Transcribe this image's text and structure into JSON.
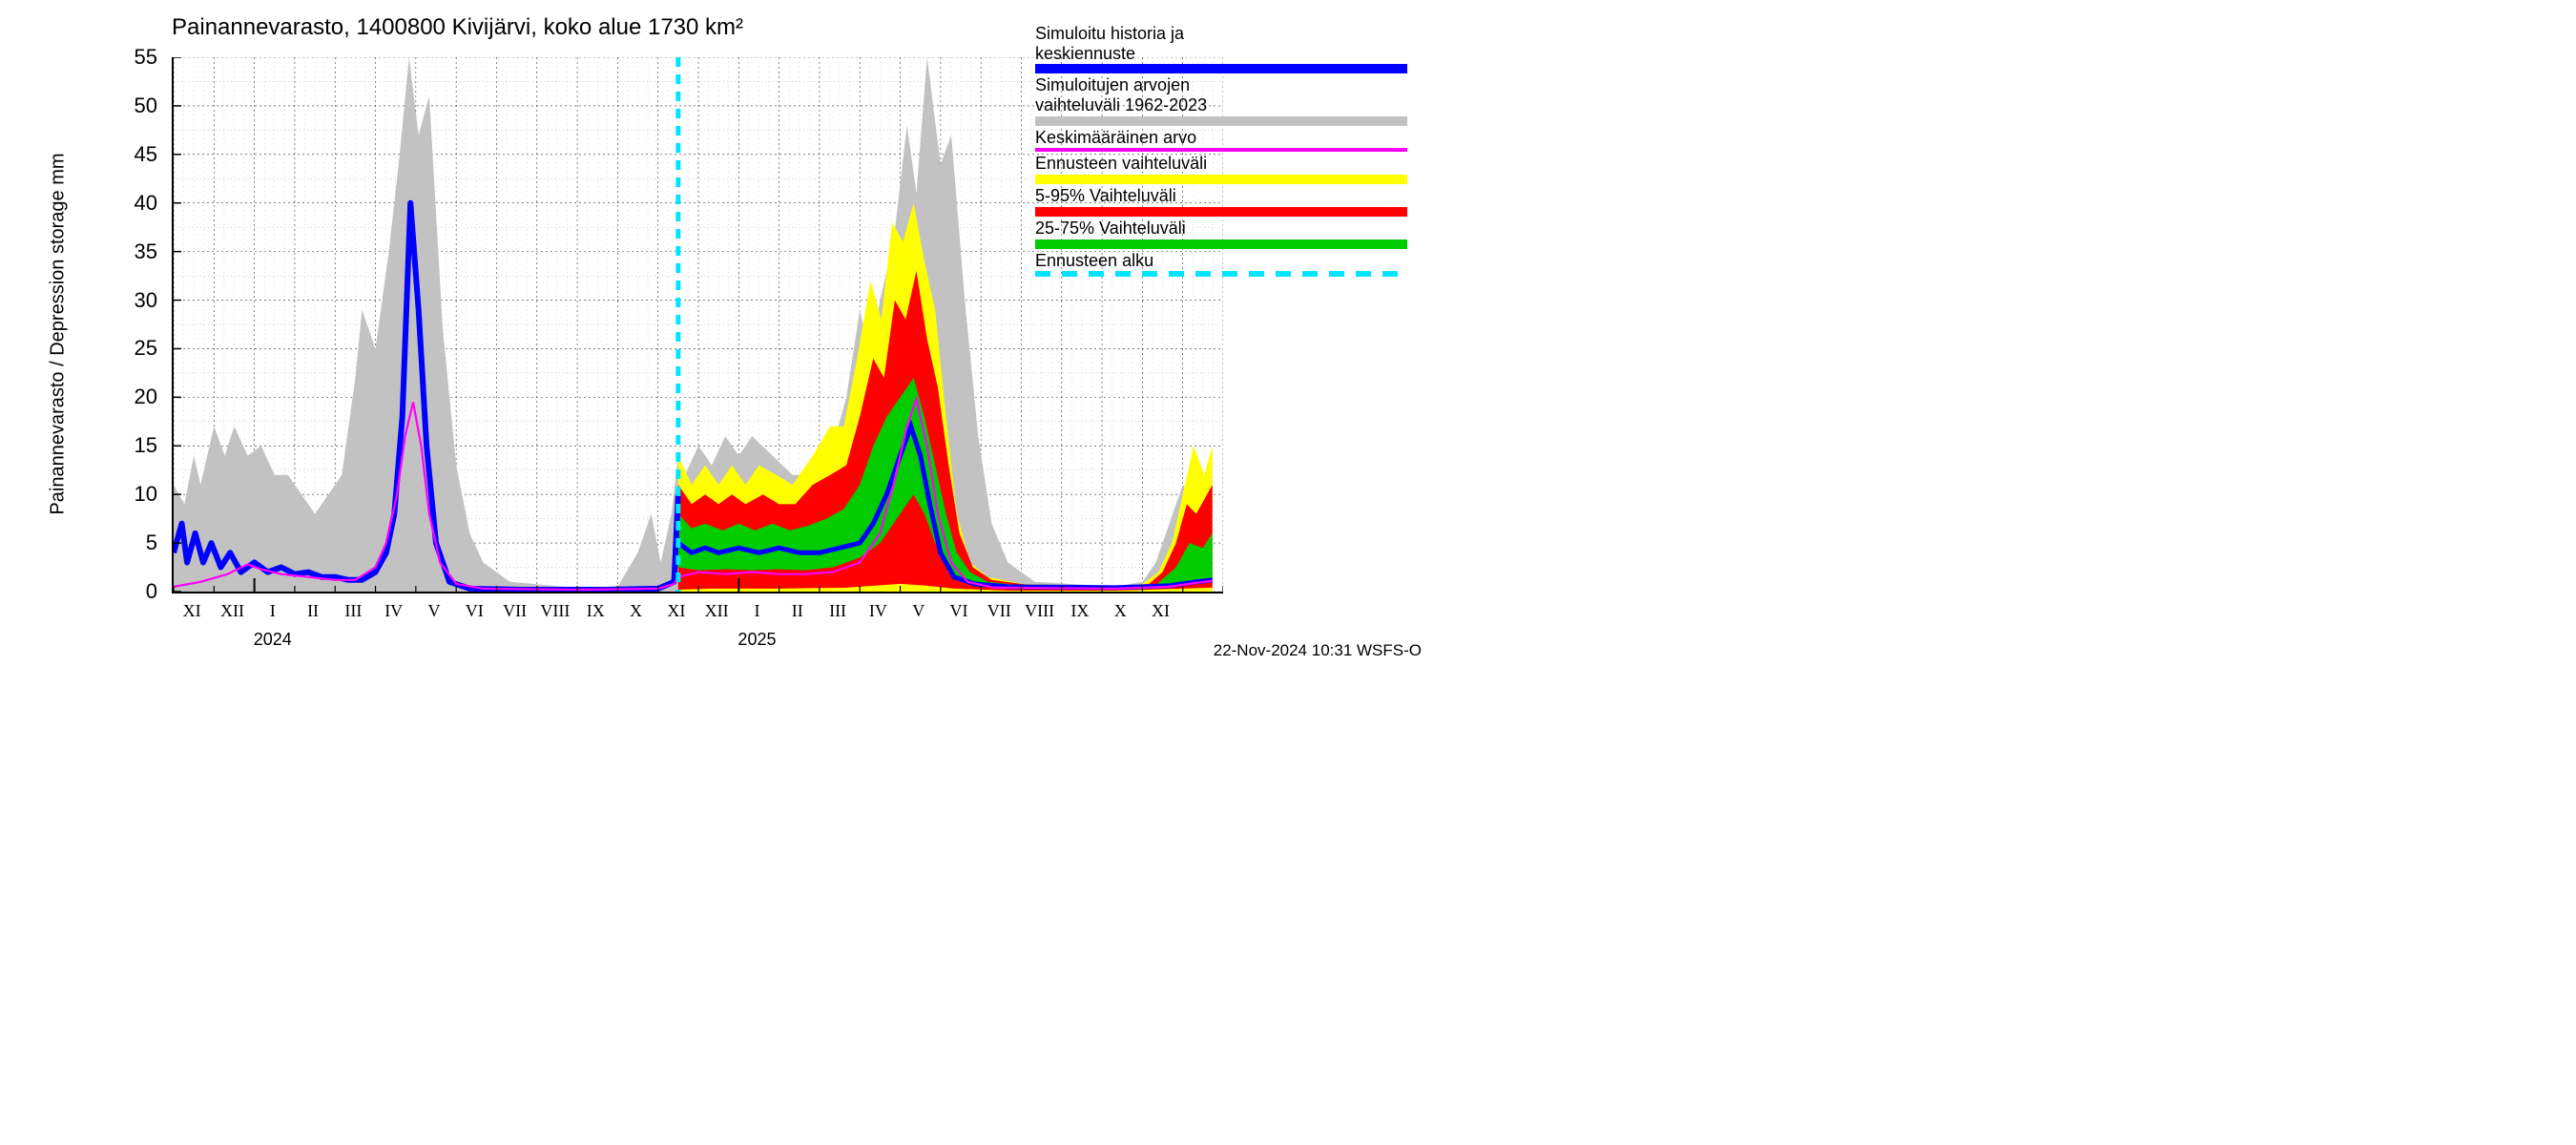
{
  "title": "Painannevarasto, 1400800 Kivijärvi, koko alue 1730 km²",
  "ylabel": "Painannevarasto / Depression storage    mm",
  "footer": "22-Nov-2024 10:31 WSFS-O",
  "axes": {
    "ylim": [
      0,
      55
    ],
    "ytick_step": 5,
    "yticks": [
      0,
      5,
      10,
      15,
      20,
      25,
      30,
      35,
      40,
      45,
      50,
      55
    ],
    "xlim": [
      0,
      390
    ],
    "xtick_positions": [
      10,
      40,
      73,
      103,
      133,
      163,
      195,
      225,
      255,
      285,
      315,
      345,
      375
    ],
    "xtick_labels_row1": [
      "XI",
      "XII",
      "I",
      "II",
      "III",
      "IV",
      "V",
      "VI",
      "VII",
      "VIII",
      "IX",
      "X",
      "XI"
    ],
    "xtick_positions_row2": [
      400,
      430,
      460,
      490,
      522,
      552,
      582,
      612,
      642,
      672,
      702,
      732,
      762
    ],
    "year_marks": [
      {
        "x": 73,
        "label": "2024"
      },
      {
        "x": 460,
        "label": "2025"
      }
    ]
  },
  "colors": {
    "background": "#ffffff",
    "grid_major": "#333333",
    "grid_minor": "#aaaaaa",
    "axis": "#000000",
    "grey_band": "#c2c2c2",
    "blue": "#0000ff",
    "magenta": "#ff00ff",
    "yellow": "#ffff00",
    "red": "#ff0000",
    "green": "#00cc00",
    "cyan": "#00e5ff"
  },
  "legend": [
    {
      "text": "Simuloitu historia ja\nkeskiennuste",
      "color": "#0000ff",
      "style": "thick"
    },
    {
      "text": "Simuloitujen arvojen\nvaihteluväli 1962-2023",
      "color": "#c2c2c2",
      "style": "thick"
    },
    {
      "text": "Keskimääräinen arvo",
      "color": "#ff00ff",
      "style": "line"
    },
    {
      "text": "Ennusteen vaihteluväli",
      "color": "#ffff00",
      "style": "thick"
    },
    {
      "text": "5-95% Vaihteluväli",
      "color": "#ff0000",
      "style": "thick"
    },
    {
      "text": "25-75% Vaihteluväli",
      "color": "#00cc00",
      "style": "thick"
    },
    {
      "text": "Ennusteen alku",
      "color": "#00e5ff",
      "style": "dashed"
    }
  ],
  "forecast_start_x": 375,
  "series": {
    "grey_band": {
      "upper": [
        [
          0,
          11
        ],
        [
          8,
          9
        ],
        [
          15,
          14
        ],
        [
          20,
          11
        ],
        [
          30,
          17
        ],
        [
          38,
          14
        ],
        [
          45,
          17
        ],
        [
          55,
          14
        ],
        [
          65,
          15
        ],
        [
          75,
          12
        ],
        [
          85,
          12
        ],
        [
          95,
          10
        ],
        [
          105,
          8
        ],
        [
          115,
          10
        ],
        [
          125,
          12
        ],
        [
          135,
          22
        ],
        [
          140,
          29
        ],
        [
          150,
          25
        ],
        [
          160,
          35
        ],
        [
          168,
          45
        ],
        [
          175,
          55
        ],
        [
          182,
          47
        ],
        [
          190,
          51
        ],
        [
          200,
          27
        ],
        [
          210,
          13
        ],
        [
          220,
          6
        ],
        [
          230,
          3
        ],
        [
          250,
          1
        ],
        [
          290,
          0.5
        ],
        [
          330,
          0.5
        ],
        [
          345,
          4
        ],
        [
          355,
          8
        ],
        [
          362,
          3
        ],
        [
          370,
          8
        ],
        [
          375,
          14
        ],
        [
          380,
          12
        ],
        [
          390,
          15
        ],
        [
          400,
          13
        ],
        [
          410,
          16
        ],
        [
          420,
          14
        ],
        [
          430,
          16
        ],
        [
          445,
          14
        ],
        [
          460,
          12
        ],
        [
          470,
          12
        ],
        [
          480,
          12
        ],
        [
          490,
          15
        ],
        [
          500,
          20
        ],
        [
          510,
          29
        ],
        [
          518,
          24
        ],
        [
          525,
          30
        ],
        [
          535,
          36
        ],
        [
          545,
          48
        ],
        [
          552,
          41
        ],
        [
          560,
          55
        ],
        [
          570,
          44
        ],
        [
          578,
          47
        ],
        [
          588,
          30
        ],
        [
          598,
          16
        ],
        [
          608,
          7
        ],
        [
          620,
          3
        ],
        [
          640,
          1
        ],
        [
          700,
          0.5
        ],
        [
          720,
          1
        ],
        [
          730,
          3
        ],
        [
          740,
          7
        ],
        [
          750,
          11
        ],
        [
          760,
          9
        ],
        [
          772,
          12
        ]
      ],
      "lower": [
        [
          0,
          0
        ],
        [
          772,
          0
        ]
      ]
    },
    "blue_sim": [
      [
        0,
        4
      ],
      [
        6,
        7
      ],
      [
        10,
        3
      ],
      [
        16,
        6
      ],
      [
        22,
        3
      ],
      [
        28,
        5
      ],
      [
        35,
        2.5
      ],
      [
        42,
        4
      ],
      [
        50,
        2
      ],
      [
        60,
        3
      ],
      [
        70,
        2
      ],
      [
        80,
        2.5
      ],
      [
        90,
        1.8
      ],
      [
        100,
        2
      ],
      [
        110,
        1.5
      ],
      [
        120,
        1.5
      ],
      [
        130,
        1.2
      ],
      [
        140,
        1.2
      ],
      [
        150,
        2
      ],
      [
        158,
        4
      ],
      [
        164,
        8
      ],
      [
        170,
        18
      ],
      [
        176,
        40
      ],
      [
        182,
        29
      ],
      [
        188,
        15
      ],
      [
        195,
        5
      ],
      [
        205,
        1
      ],
      [
        220,
        0.3
      ],
      [
        260,
        0.2
      ],
      [
        320,
        0.2
      ],
      [
        360,
        0.3
      ],
      [
        372,
        1.0
      ],
      [
        375,
        10
      ]
    ],
    "blue_forecast": [
      [
        375,
        5
      ],
      [
        385,
        4
      ],
      [
        395,
        4.5
      ],
      [
        405,
        4
      ],
      [
        420,
        4.5
      ],
      [
        435,
        4
      ],
      [
        450,
        4.5
      ],
      [
        465,
        4
      ],
      [
        480,
        4
      ],
      [
        495,
        4.5
      ],
      [
        510,
        5
      ],
      [
        520,
        7
      ],
      [
        530,
        10
      ],
      [
        540,
        14
      ],
      [
        548,
        17
      ],
      [
        555,
        14
      ],
      [
        562,
        9
      ],
      [
        570,
        4
      ],
      [
        580,
        1.5
      ],
      [
        595,
        0.8
      ],
      [
        620,
        0.5
      ],
      [
        700,
        0.4
      ],
      [
        740,
        0.6
      ],
      [
        760,
        1.0
      ],
      [
        772,
        1.2
      ]
    ],
    "magenta": [
      [
        0,
        0.5
      ],
      [
        20,
        1
      ],
      [
        40,
        1.8
      ],
      [
        55,
        2.8
      ],
      [
        65,
        2.3
      ],
      [
        80,
        1.8
      ],
      [
        100,
        1.5
      ],
      [
        120,
        1.2
      ],
      [
        135,
        1.2
      ],
      [
        150,
        2.5
      ],
      [
        158,
        5
      ],
      [
        166,
        10
      ],
      [
        172,
        16
      ],
      [
        178,
        19.5
      ],
      [
        184,
        15
      ],
      [
        190,
        8
      ],
      [
        198,
        3
      ],
      [
        210,
        0.8
      ],
      [
        230,
        0.3
      ],
      [
        300,
        0.2
      ],
      [
        360,
        0.3
      ],
      [
        372,
        0.8
      ],
      [
        375,
        1.5
      ],
      [
        390,
        2
      ],
      [
        410,
        1.8
      ],
      [
        430,
        2
      ],
      [
        450,
        1.8
      ],
      [
        470,
        1.8
      ],
      [
        490,
        2
      ],
      [
        510,
        3
      ],
      [
        525,
        6
      ],
      [
        535,
        11
      ],
      [
        545,
        17
      ],
      [
        552,
        19.8
      ],
      [
        560,
        15
      ],
      [
        568,
        8
      ],
      [
        578,
        3
      ],
      [
        590,
        1
      ],
      [
        610,
        0.4
      ],
      [
        700,
        0.3
      ],
      [
        740,
        0.5
      ],
      [
        760,
        0.9
      ],
      [
        772,
        1.1
      ]
    ],
    "yellow_band": {
      "upper": [
        [
          375,
          14
        ],
        [
          385,
          11
        ],
        [
          395,
          13
        ],
        [
          405,
          11
        ],
        [
          415,
          13
        ],
        [
          425,
          11
        ],
        [
          435,
          13
        ],
        [
          448,
          12
        ],
        [
          460,
          11
        ],
        [
          475,
          14
        ],
        [
          488,
          17
        ],
        [
          498,
          17
        ],
        [
          508,
          24
        ],
        [
          518,
          32
        ],
        [
          526,
          28
        ],
        [
          534,
          38
        ],
        [
          542,
          36
        ],
        [
          550,
          40
        ],
        [
          558,
          34
        ],
        [
          566,
          29
        ],
        [
          574,
          18
        ],
        [
          582,
          8
        ],
        [
          592,
          3
        ],
        [
          605,
          1.5
        ],
        [
          630,
          0.8
        ],
        [
          700,
          0.5
        ],
        [
          720,
          0.8
        ],
        [
          732,
          2
        ],
        [
          742,
          5
        ],
        [
          750,
          10
        ],
        [
          758,
          15
        ],
        [
          766,
          12
        ],
        [
          772,
          15
        ]
      ],
      "lower": [
        [
          375,
          0
        ],
        [
          772,
          0
        ]
      ]
    },
    "red_band": {
      "upper": [
        [
          375,
          11
        ],
        [
          385,
          9
        ],
        [
          395,
          10
        ],
        [
          405,
          9
        ],
        [
          415,
          10
        ],
        [
          425,
          9
        ],
        [
          438,
          10
        ],
        [
          450,
          9
        ],
        [
          462,
          9
        ],
        [
          475,
          11
        ],
        [
          488,
          12
        ],
        [
          500,
          13
        ],
        [
          510,
          18
        ],
        [
          520,
          24
        ],
        [
          528,
          22
        ],
        [
          536,
          30
        ],
        [
          544,
          28
        ],
        [
          552,
          33
        ],
        [
          560,
          26
        ],
        [
          568,
          21
        ],
        [
          576,
          13
        ],
        [
          584,
          6
        ],
        [
          594,
          2.5
        ],
        [
          608,
          1.2
        ],
        [
          640,
          0.6
        ],
        [
          700,
          0.4
        ],
        [
          725,
          0.8
        ],
        [
          735,
          2
        ],
        [
          745,
          5
        ],
        [
          753,
          9
        ],
        [
          760,
          8
        ],
        [
          768,
          10
        ],
        [
          772,
          11
        ]
      ],
      "lower": [
        [
          375,
          0.2
        ],
        [
          400,
          0.3
        ],
        [
          450,
          0.3
        ],
        [
          500,
          0.4
        ],
        [
          540,
          0.8
        ],
        [
          560,
          0.6
        ],
        [
          580,
          0.3
        ],
        [
          620,
          0.1
        ],
        [
          700,
          0.1
        ],
        [
          750,
          0.3
        ],
        [
          772,
          0.4
        ]
      ]
    },
    "green_band": {
      "upper": [
        [
          375,
          8
        ],
        [
          385,
          6.5
        ],
        [
          395,
          7
        ],
        [
          408,
          6.3
        ],
        [
          420,
          7
        ],
        [
          432,
          6.3
        ],
        [
          445,
          7
        ],
        [
          458,
          6.3
        ],
        [
          472,
          6.8
        ],
        [
          485,
          7.5
        ],
        [
          498,
          8.5
        ],
        [
          510,
          11
        ],
        [
          520,
          15
        ],
        [
          530,
          18
        ],
        [
          540,
          20
        ],
        [
          550,
          22
        ],
        [
          558,
          18
        ],
        [
          566,
          13
        ],
        [
          574,
          8
        ],
        [
          582,
          4
        ],
        [
          592,
          2
        ],
        [
          605,
          1
        ],
        [
          640,
          0.5
        ],
        [
          700,
          0.4
        ],
        [
          730,
          0.7
        ],
        [
          745,
          2.5
        ],
        [
          755,
          5
        ],
        [
          765,
          4.5
        ],
        [
          772,
          6
        ]
      ],
      "lower": [
        [
          375,
          2.5
        ],
        [
          390,
          2.2
        ],
        [
          410,
          2.3
        ],
        [
          430,
          2.2
        ],
        [
          450,
          2.3
        ],
        [
          470,
          2.2
        ],
        [
          490,
          2.5
        ],
        [
          510,
          3.5
        ],
        [
          525,
          5
        ],
        [
          540,
          8
        ],
        [
          550,
          10
        ],
        [
          558,
          8
        ],
        [
          566,
          5
        ],
        [
          575,
          2.5
        ],
        [
          585,
          1.2
        ],
        [
          600,
          0.6
        ],
        [
          640,
          0.3
        ],
        [
          700,
          0.2
        ],
        [
          740,
          0.4
        ],
        [
          760,
          0.8
        ],
        [
          772,
          1.0
        ]
      ]
    }
  },
  "style": {
    "title_fontsize": 24,
    "label_fontsize": 20,
    "tick_fontsize": 22,
    "legend_fontsize": 18,
    "blue_width": 6,
    "magenta_width": 2.2,
    "forecast_line_width": 5,
    "cyan_dash": "10,8"
  }
}
